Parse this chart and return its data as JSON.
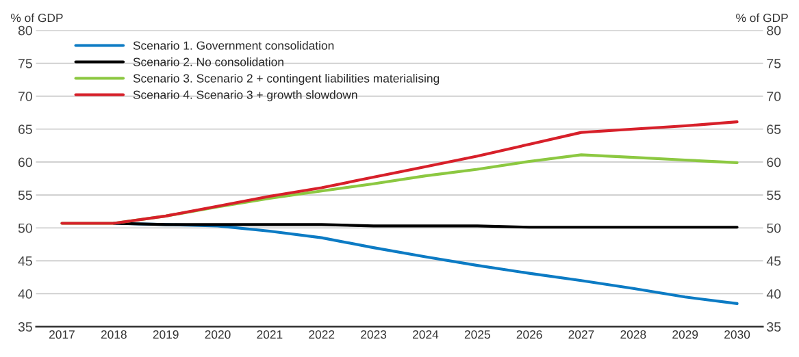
{
  "chart_data": {
    "type": "line",
    "ylabel": "% of GDP",
    "y2label": "% of GDP",
    "categories": [
      "2017",
      "2018",
      "2019",
      "2020",
      "2021",
      "2022",
      "2023",
      "2024",
      "2025",
      "2026",
      "2027",
      "2028",
      "2029",
      "2030"
    ],
    "series": [
      {
        "name": "Scenario 1. Government consolidation",
        "color": "#0c7bc4",
        "values": [
          null,
          50.7,
          50.5,
          50.3,
          49.5,
          48.5,
          47.0,
          45.6,
          44.3,
          43.1,
          42.0,
          40.8,
          39.5,
          38.5
        ]
      },
      {
        "name": "Scenario 2. No consolidation",
        "color": "#000000",
        "values": [
          null,
          50.7,
          50.5,
          50.5,
          50.5,
          50.5,
          50.3,
          50.3,
          50.3,
          50.1,
          50.1,
          50.1,
          50.1,
          50.1
        ]
      },
      {
        "name": "Scenario 3. Scenario 2 + contingent liabilities materialising",
        "color": "#8cc841",
        "values": [
          50.7,
          50.7,
          51.8,
          53.2,
          54.5,
          55.6,
          56.7,
          57.9,
          58.9,
          60.1,
          61.1,
          60.7,
          60.3,
          59.9
        ]
      },
      {
        "name": "Scenario 4. Scenario 3 + growth slowdown",
        "color": "#d7202a",
        "values": [
          50.7,
          50.7,
          51.8,
          53.3,
          54.8,
          56.1,
          57.7,
          59.3,
          60.9,
          62.7,
          64.5,
          65.0,
          65.5,
          66.1
        ]
      }
    ],
    "ylim": [
      35,
      80
    ],
    "yticks": [
      35,
      40,
      45,
      50,
      55,
      60,
      65,
      70,
      75,
      80
    ],
    "y2lim": [
      35,
      80
    ],
    "y2ticks": [
      35,
      40,
      45,
      50,
      55,
      60,
      65,
      70,
      75,
      80
    ],
    "grid": "y",
    "legend": "top left",
    "marker": "none",
    "line_style": "solid"
  }
}
